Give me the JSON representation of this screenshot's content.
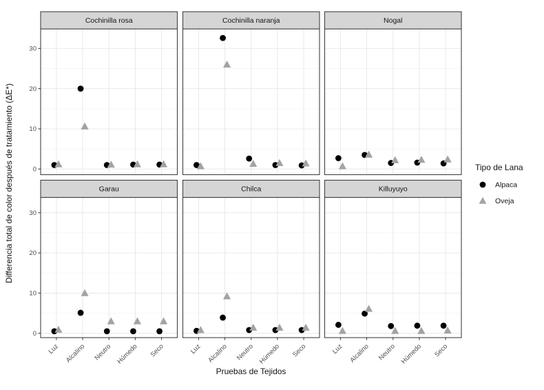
{
  "chart_data": {
    "type": "scatter",
    "title": "",
    "xlabel": "Pruebas de Tejidos",
    "ylabel": "Differencia total de color después de tratamiento (ΔE*)",
    "categories": [
      "Luz",
      "Alcalino",
      "Neutro",
      "Húmedo",
      "Seco"
    ],
    "yticks": [
      0,
      10,
      20,
      30
    ],
    "yticks_minor": [
      5,
      15,
      25
    ],
    "ylim": [
      -1.5,
      34.5
    ],
    "grid": "on",
    "legend_position": "right",
    "facet_layout": [
      [
        "Cochinilla rosa",
        "Cochinilla naranja",
        "Nogal"
      ],
      [
        "Garau",
        "Chilca",
        "Killuyuyo"
      ]
    ],
    "legend": {
      "title": "Tipo de Lana",
      "items": [
        {
          "label": "Alpaca",
          "marker": "circle"
        },
        {
          "label": "Oveja",
          "marker": "triangle"
        }
      ]
    },
    "facets": [
      {
        "name": "Cochinilla rosa",
        "series": [
          {
            "name": "Alpaca",
            "marker": "circle",
            "values": [
              1.0,
              20.0,
              1.0,
              1.1,
              1.1
            ]
          },
          {
            "name": "Oveja",
            "marker": "triangle",
            "values": [
              1.2,
              10.6,
              1.1,
              1.2,
              1.2
            ]
          }
        ]
      },
      {
        "name": "Cochinilla naranja",
        "series": [
          {
            "name": "Alpaca",
            "marker": "circle",
            "values": [
              1.0,
              32.6,
              2.6,
              1.0,
              0.9
            ]
          },
          {
            "name": "Oveja",
            "marker": "triangle",
            "values": [
              0.7,
              26.0,
              1.3,
              1.5,
              1.4
            ]
          }
        ]
      },
      {
        "name": "Nogal",
        "series": [
          {
            "name": "Alpaca",
            "marker": "circle",
            "values": [
              2.7,
              3.5,
              1.5,
              1.6,
              1.4
            ]
          },
          {
            "name": "Oveja",
            "marker": "triangle",
            "values": [
              0.7,
              3.6,
              2.2,
              2.3,
              2.4
            ]
          }
        ]
      },
      {
        "name": "Garau",
        "series": [
          {
            "name": "Alpaca",
            "marker": "circle",
            "values": [
              0.5,
              5.1,
              0.5,
              0.5,
              0.5
            ]
          },
          {
            "name": "Oveja",
            "marker": "triangle",
            "values": [
              0.9,
              10.0,
              3.0,
              3.0,
              3.0
            ]
          }
        ]
      },
      {
        "name": "Chilca",
        "series": [
          {
            "name": "Alpaca",
            "marker": "circle",
            "values": [
              0.6,
              3.9,
              0.8,
              0.8,
              0.8
            ]
          },
          {
            "name": "Oveja",
            "marker": "triangle",
            "values": [
              0.8,
              9.2,
              1.4,
              1.4,
              1.4
            ]
          }
        ]
      },
      {
        "name": "Killuyuyo",
        "series": [
          {
            "name": "Alpaca",
            "marker": "circle",
            "values": [
              2.1,
              4.9,
              1.8,
              1.9,
              1.9
            ]
          },
          {
            "name": "Oveja",
            "marker": "triangle",
            "values": [
              0.6,
              6.1,
              0.6,
              0.6,
              0.7
            ]
          }
        ]
      }
    ],
    "colors": {
      "alpaca": "#000000",
      "oveja": "#a3a3a3",
      "strip_bg": "#d5d5d5",
      "panel_bg": "#ffffff",
      "grid_major": "#e8e8e8",
      "grid_minor": "#f3f3f3",
      "panel_border": "#404040",
      "tick": "#333333",
      "tick_label": "#4d4d4d",
      "text": "#141414"
    }
  }
}
